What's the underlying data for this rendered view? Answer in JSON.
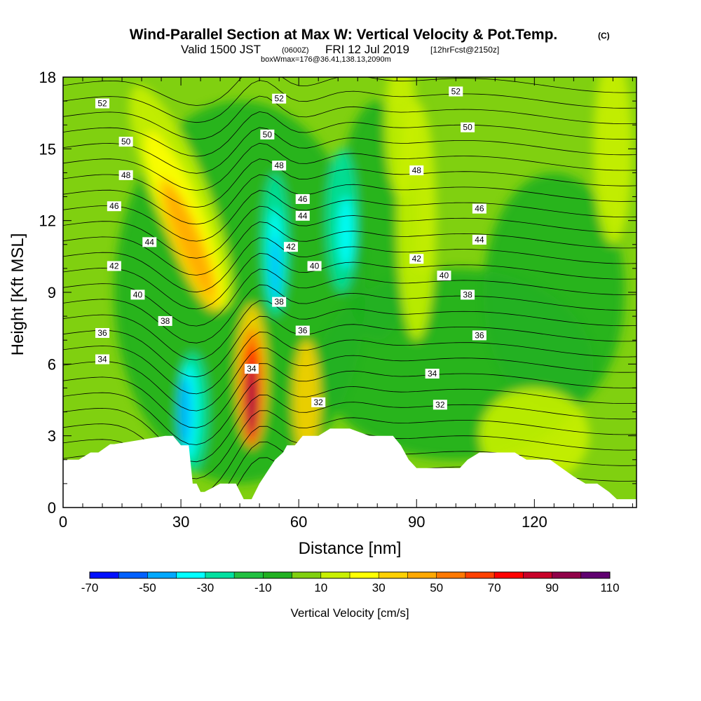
{
  "title": {
    "main": "Wind-Parallel Section at Max W: Vertical Velocity & Pot.Temp.",
    "copyright": "(C)",
    "valid_prefix": "Valid 1500 JST",
    "valid_utc": "(0600Z)",
    "valid_date": "FRI 12 Jul 2019",
    "forecast": "[12hrFcst@2150z]",
    "box": "boxWmax=176@36.41,138.13,2090m"
  },
  "chart_data": {
    "type": "heatmap",
    "xlabel": "Distance [nm]",
    "ylabel": "Height [Kft MSL]",
    "xlim": [
      0,
      146
    ],
    "ylim": [
      0,
      18
    ],
    "x_ticks": [
      0,
      30,
      60,
      90,
      120
    ],
    "y_ticks": [
      0,
      3,
      6,
      9,
      12,
      15,
      18
    ],
    "colorbar": {
      "title": "Vertical Velocity [cm/s]",
      "tick_labels": [
        "-70",
        "-50",
        "-30",
        "-10",
        "10",
        "30",
        "50",
        "70",
        "90",
        "110"
      ],
      "colors": [
        "#0010ff",
        "#0060ff",
        "#00a8ff",
        "#00ffff",
        "#00e0a0",
        "#20c040",
        "#20b020",
        "#80d010",
        "#c8f000",
        "#ffff00",
        "#ffd000",
        "#ffa800",
        "#ff7800",
        "#ff4000",
        "#ff0000",
        "#c80028",
        "#900048",
        "#600070"
      ]
    },
    "terrain_profile": {
      "x": [
        0,
        4,
        7,
        9,
        12,
        13,
        26,
        28,
        30,
        32,
        33,
        34,
        35,
        36,
        40,
        44,
        46,
        48,
        50,
        52,
        54,
        56,
        57,
        59,
        61,
        63,
        65,
        68,
        70,
        73,
        78,
        81,
        84,
        86,
        88,
        90,
        101,
        103,
        106,
        109,
        112,
        115,
        118,
        121,
        124,
        127,
        130,
        133,
        136,
        139,
        141,
        143,
        146
      ],
      "height_kft": [
        2.0,
        2.0,
        2.3,
        2.3,
        2.65,
        2.65,
        3.0,
        3.0,
        2.6,
        2.6,
        1.0,
        1.0,
        0.65,
        0.65,
        1.0,
        1.0,
        0.35,
        0.35,
        1.0,
        1.5,
        2.0,
        2.3,
        2.6,
        2.6,
        3.0,
        3.0,
        3.0,
        3.3,
        3.3,
        3.3,
        3.0,
        3.0,
        3.0,
        2.6,
        2.0,
        1.65,
        1.65,
        2.0,
        2.3,
        2.3,
        2.3,
        2.3,
        2.0,
        2.0,
        2.0,
        1.65,
        1.3,
        1.0,
        1.0,
        0.65,
        0.35,
        0.35,
        0.35
      ]
    },
    "theta_contour_labels": [
      {
        "value": "52",
        "x": 10,
        "z": 16.9
      },
      {
        "value": "50",
        "x": 16,
        "z": 15.3
      },
      {
        "value": "48",
        "x": 16,
        "z": 13.9
      },
      {
        "value": "46",
        "x": 13,
        "z": 12.6
      },
      {
        "value": "44",
        "x": 22,
        "z": 11.1
      },
      {
        "value": "42",
        "x": 13,
        "z": 10.1
      },
      {
        "value": "40",
        "x": 19,
        "z": 8.9
      },
      {
        "value": "38",
        "x": 26,
        "z": 7.8
      },
      {
        "value": "36",
        "x": 10,
        "z": 7.3
      },
      {
        "value": "34",
        "x": 10,
        "z": 6.2
      },
      {
        "value": "52",
        "x": 55,
        "z": 17.1
      },
      {
        "value": "50",
        "x": 52,
        "z": 15.6
      },
      {
        "value": "48",
        "x": 55,
        "z": 14.3
      },
      {
        "value": "46",
        "x": 61,
        "z": 12.9
      },
      {
        "value": "44",
        "x": 61,
        "z": 12.2
      },
      {
        "value": "42",
        "x": 58,
        "z": 10.9
      },
      {
        "value": "40",
        "x": 64,
        "z": 10.1
      },
      {
        "value": "38",
        "x": 55,
        "z": 8.6
      },
      {
        "value": "36",
        "x": 61,
        "z": 7.4
      },
      {
        "value": "34",
        "x": 48,
        "z": 5.8
      },
      {
        "value": "32",
        "x": 65,
        "z": 4.4
      },
      {
        "value": "52",
        "x": 100,
        "z": 17.4
      },
      {
        "value": "50",
        "x": 103,
        "z": 15.9
      },
      {
        "value": "48",
        "x": 90,
        "z": 14.1
      },
      {
        "value": "46",
        "x": 106,
        "z": 12.5
      },
      {
        "value": "44",
        "x": 106,
        "z": 11.2
      },
      {
        "value": "42",
        "x": 90,
        "z": 10.4
      },
      {
        "value": "40",
        "x": 97,
        "z": 9.7
      },
      {
        "value": "38",
        "x": 103,
        "z": 8.9
      },
      {
        "value": "36",
        "x": 106,
        "z": 7.2
      },
      {
        "value": "34",
        "x": 94,
        "z": 5.6
      },
      {
        "value": "32",
        "x": 96,
        "z": 4.3
      }
    ]
  }
}
